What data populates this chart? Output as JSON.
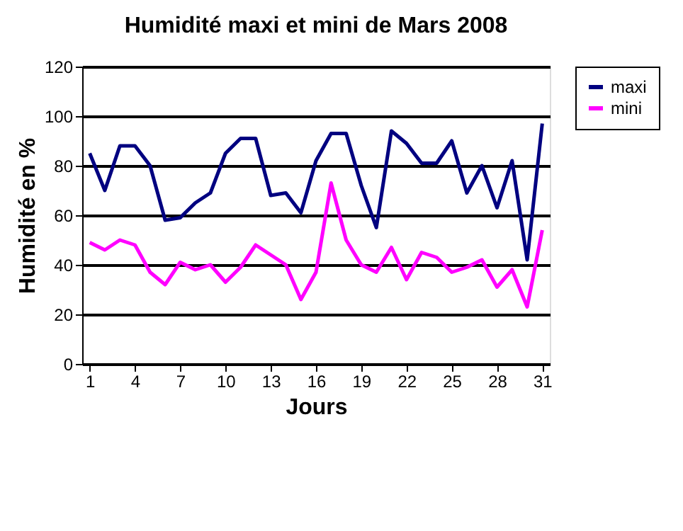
{
  "chart_data": {
    "type": "line",
    "title": "Humidité maxi et mini de Mars 2008",
    "xlabel": "Jours",
    "ylabel": "Humidité en %",
    "x": [
      1,
      2,
      3,
      4,
      5,
      6,
      7,
      8,
      9,
      10,
      11,
      12,
      13,
      14,
      15,
      16,
      17,
      18,
      19,
      20,
      21,
      22,
      23,
      24,
      25,
      26,
      27,
      28,
      29,
      30,
      31
    ],
    "series": [
      {
        "name": "maxi",
        "color": "#000080",
        "values": [
          85,
          70,
          88,
          88,
          80,
          58,
          59,
          65,
          69,
          85,
          91,
          91,
          68,
          69,
          61,
          82,
          93,
          93,
          72,
          55,
          94,
          89,
          81,
          81,
          90,
          69,
          80,
          63,
          82,
          42,
          97
        ]
      },
      {
        "name": "mini",
        "color": "#ff00ff",
        "values": [
          49,
          46,
          50,
          48,
          37,
          32,
          41,
          38,
          40,
          33,
          39,
          48,
          44,
          40,
          26,
          37,
          73,
          50,
          40,
          37,
          47,
          34,
          45,
          43,
          37,
          39,
          42,
          31,
          38,
          23,
          54
        ]
      }
    ],
    "xlim": [
      0.5,
      31.5
    ],
    "xticks": [
      1,
      4,
      7,
      10,
      13,
      16,
      19,
      22,
      25,
      28,
      31
    ],
    "ylim": [
      0,
      120
    ],
    "yticks": [
      0,
      20,
      40,
      60,
      80,
      100,
      120
    ],
    "grid": "y",
    "legend": "right",
    "marker": "none",
    "line_style": "solid"
  }
}
